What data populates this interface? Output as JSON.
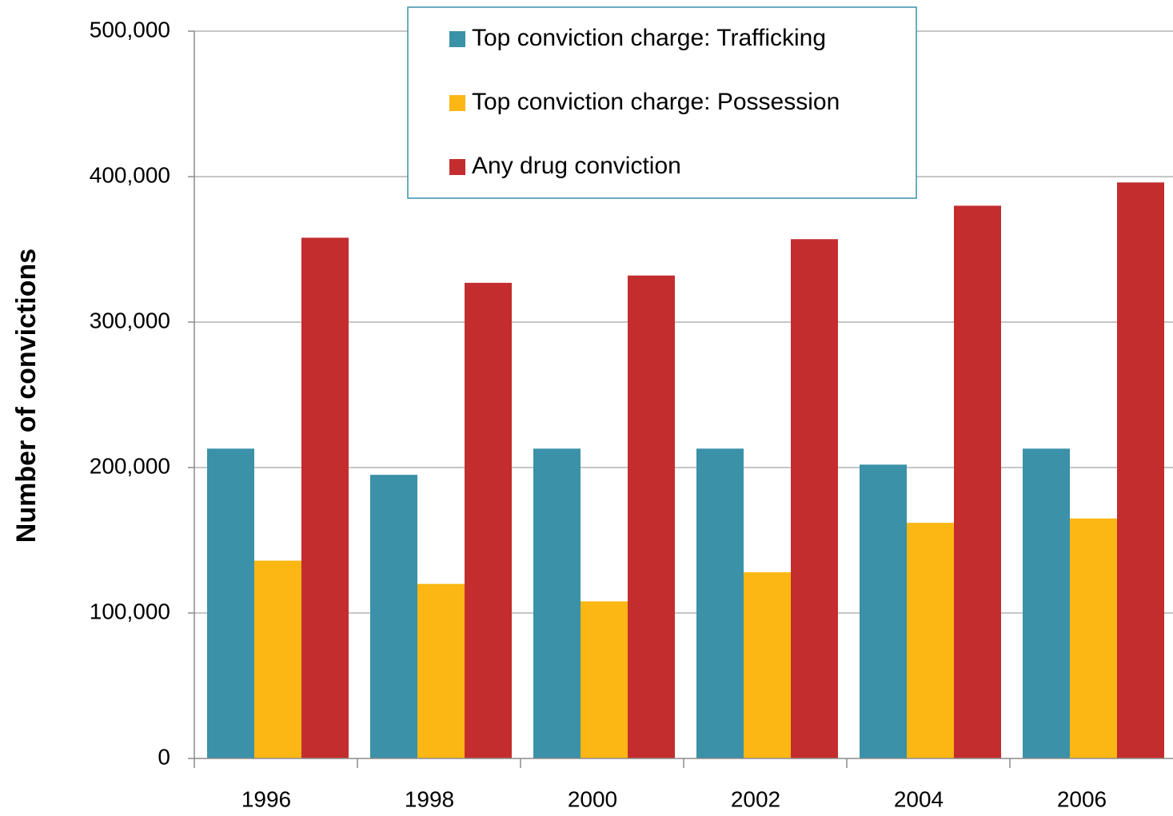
{
  "chart_data": {
    "type": "bar",
    "y_axis_label": "Number of convictions",
    "categories": [
      "1996",
      "1998",
      "2000",
      "2002",
      "2004",
      "2006"
    ],
    "series": [
      {
        "name": "Top conviction charge: Trafficking",
        "color": "#3a91a8",
        "values": [
          213000,
          195000,
          213000,
          213000,
          202000,
          213000
        ]
      },
      {
        "name": "Top conviction charge: Possession",
        "color": "#fdb714",
        "values": [
          136000,
          120000,
          108000,
          128000,
          162000,
          165000
        ]
      },
      {
        "name": "Any drug conviction",
        "color": "#c32d2e",
        "values": [
          358000,
          327000,
          332000,
          357000,
          380000,
          396000
        ]
      }
    ],
    "ylim": [
      0,
      500000
    ],
    "yticks": [
      0,
      {
        "value": 100000,
        "label": "100,000"
      },
      {
        "value": 200000,
        "label": "200,000"
      },
      {
        "value": 300000,
        "label": "300,000"
      },
      {
        "value": 400000,
        "label": "400,000"
      },
      {
        "value": 500000,
        "label": "500,000"
      }
    ],
    "grid": true,
    "legend": "top"
  }
}
